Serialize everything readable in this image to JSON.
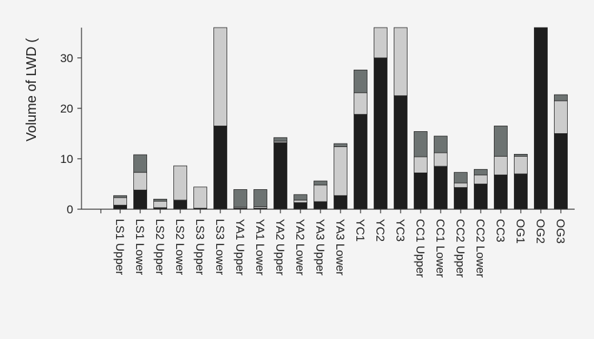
{
  "chart_data": {
    "type": "bar",
    "stacked": true,
    "ylabel": "Volume of LWD (",
    "ylim": [
      0,
      36
    ],
    "yticks": [
      0,
      10,
      20,
      30
    ],
    "categories": [
      "LS1 Upper",
      "LS1 Lower",
      "LS2 Upper",
      "LS2 Lower",
      "LS3 Upper",
      "LS3 Lower",
      "YA1 Upper",
      "YA1 Lower",
      "YA2 Upper",
      "YA2 Lower",
      "YA3 Upper",
      "YA3 Lower",
      "YC1",
      "YC2",
      "YC3",
      "CC1 Upper",
      "CC1 Lower",
      "CC2 Upper",
      "CC2 Lower",
      "CC3",
      "OG1",
      "OG2",
      "OG3"
    ],
    "series": [
      {
        "color": "#1e1e1e",
        "values": [
          0.8,
          3.8,
          0.3,
          1.8,
          0.2,
          16.5,
          0.2,
          0.2,
          13.2,
          1.3,
          1.5,
          2.7,
          18.8,
          30,
          22.5,
          7.2,
          8.5,
          4.3,
          5,
          6.8,
          7,
          36,
          15
        ]
      },
      {
        "color": "#cccccc",
        "values": [
          1.5,
          3.5,
          1.3,
          6.8,
          4.2,
          22,
          0.2,
          0.3,
          0.3,
          0.5,
          3.3,
          9.7,
          4.3,
          8,
          14,
          3.2,
          2.7,
          0.9,
          1.8,
          3.7,
          3.5,
          1,
          6.5
        ]
      },
      {
        "color": "#6d7372",
        "values": [
          0.4,
          3.5,
          0.4,
          0,
          0,
          0,
          3.5,
          3.4,
          0.7,
          1.1,
          0.8,
          0.6,
          4.5,
          0,
          0,
          5,
          3.3,
          2.1,
          1.1,
          6,
          0.4,
          0,
          1.2
        ]
      }
    ],
    "legend": "none",
    "grid": false
  }
}
